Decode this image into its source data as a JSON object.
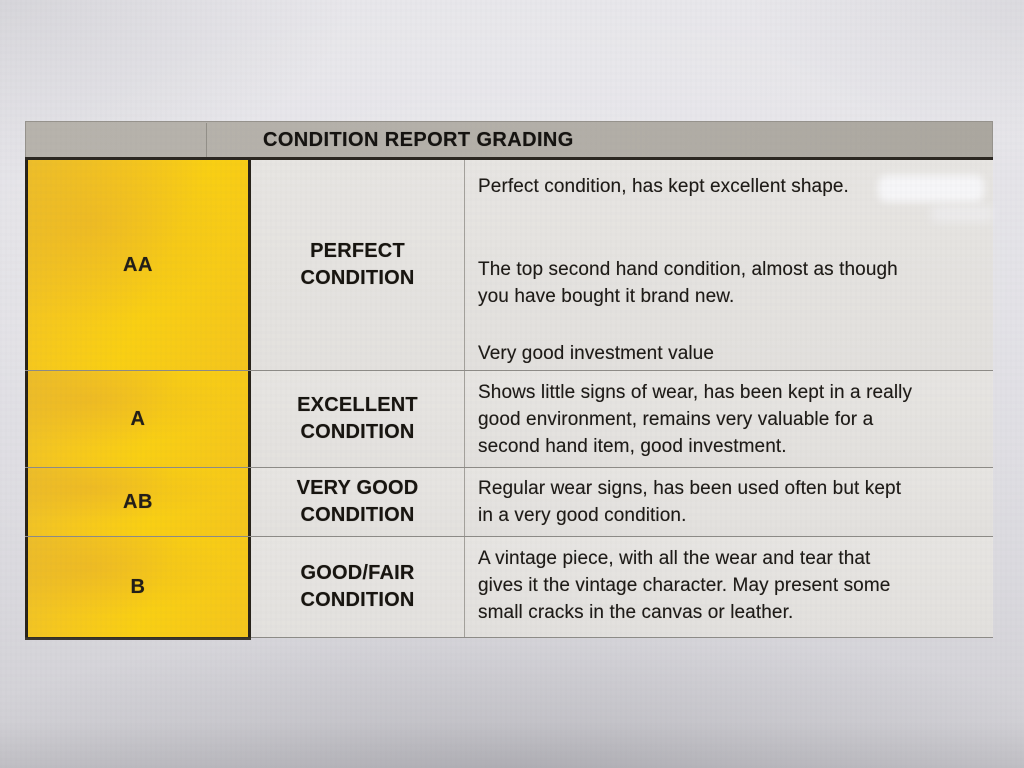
{
  "document": {
    "title": "CONDITION REPORT GRADING",
    "colors": {
      "grade_yellow": "#f7c91c",
      "header_gray": "#b3afa8",
      "cell_gray": "#e5e3e0",
      "border_dark": "#272219",
      "border_light": "#8d8b87",
      "text": "#1d1a16",
      "paper": "#e0dfe4"
    },
    "rows": [
      {
        "grade": "AA",
        "condition": {
          "line1": "PERFECT",
          "line2": "CONDITION"
        },
        "paragraphs": [
          {
            "lines": [
              "Perfect condition, has kept excellent shape."
            ]
          },
          {
            "lines": [
              "The top second hand condition, almost as though",
              "you have bought it brand new."
            ]
          },
          {
            "lines": [
              "Very good investment value"
            ]
          }
        ]
      },
      {
        "grade": "A",
        "condition": {
          "line1": "EXCELLENT",
          "line2": "CONDITION"
        },
        "paragraphs": [
          {
            "lines": [
              "Shows little signs of wear, has been kept in a really",
              "good environment, remains very valuable for a",
              "second hand item, good investment."
            ]
          }
        ]
      },
      {
        "grade": "AB",
        "condition": {
          "line1": "VERY GOOD",
          "line2": "CONDITION"
        },
        "paragraphs": [
          {
            "lines": [
              "Regular wear signs, has been used often but kept",
              "in a very good condition."
            ]
          }
        ]
      },
      {
        "grade": "B",
        "condition": {
          "line1": "GOOD/FAIR",
          "line2": "CONDITION"
        },
        "paragraphs": [
          {
            "lines": [
              "A vintage piece, with all the wear and tear that",
              "gives it the vintage character. May present some",
              "small cracks in the canvas or leather."
            ]
          }
        ]
      }
    ]
  }
}
